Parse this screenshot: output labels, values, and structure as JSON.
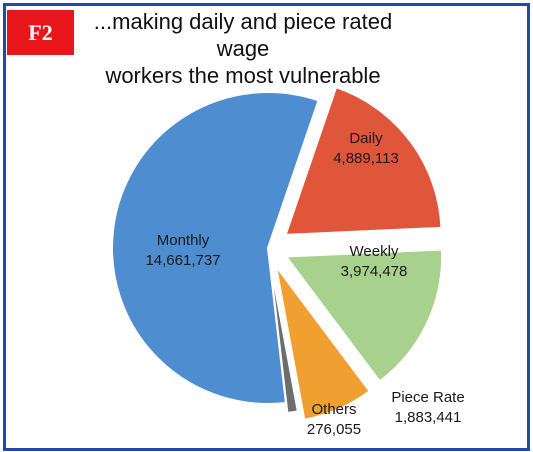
{
  "badge": "F2",
  "title_lines": [
    "...making daily and piece rated wage",
    "workers the most vulnerable"
  ],
  "chart_data": {
    "type": "pie",
    "title": "...making daily and piece rated wage workers the most vulnerable",
    "slices": [
      {
        "label": "Monthly",
        "value": 14661737,
        "value_label": "14,661,737",
        "color": "#4e8ed0"
      },
      {
        "label": "Daily",
        "value": 4889113,
        "value_label": "4,889,113",
        "color": "#e0563a"
      },
      {
        "label": "Weekly",
        "value": 3974478,
        "value_label": "3,974,478",
        "color": "#a9d18e"
      },
      {
        "label": "Piece Rate",
        "value": 1883441,
        "value_label": "1,883,441",
        "color": "#f0a030"
      },
      {
        "label": "Others",
        "value": 276055,
        "value_label": "276,055",
        "color": "#6d6d6d"
      }
    ]
  }
}
